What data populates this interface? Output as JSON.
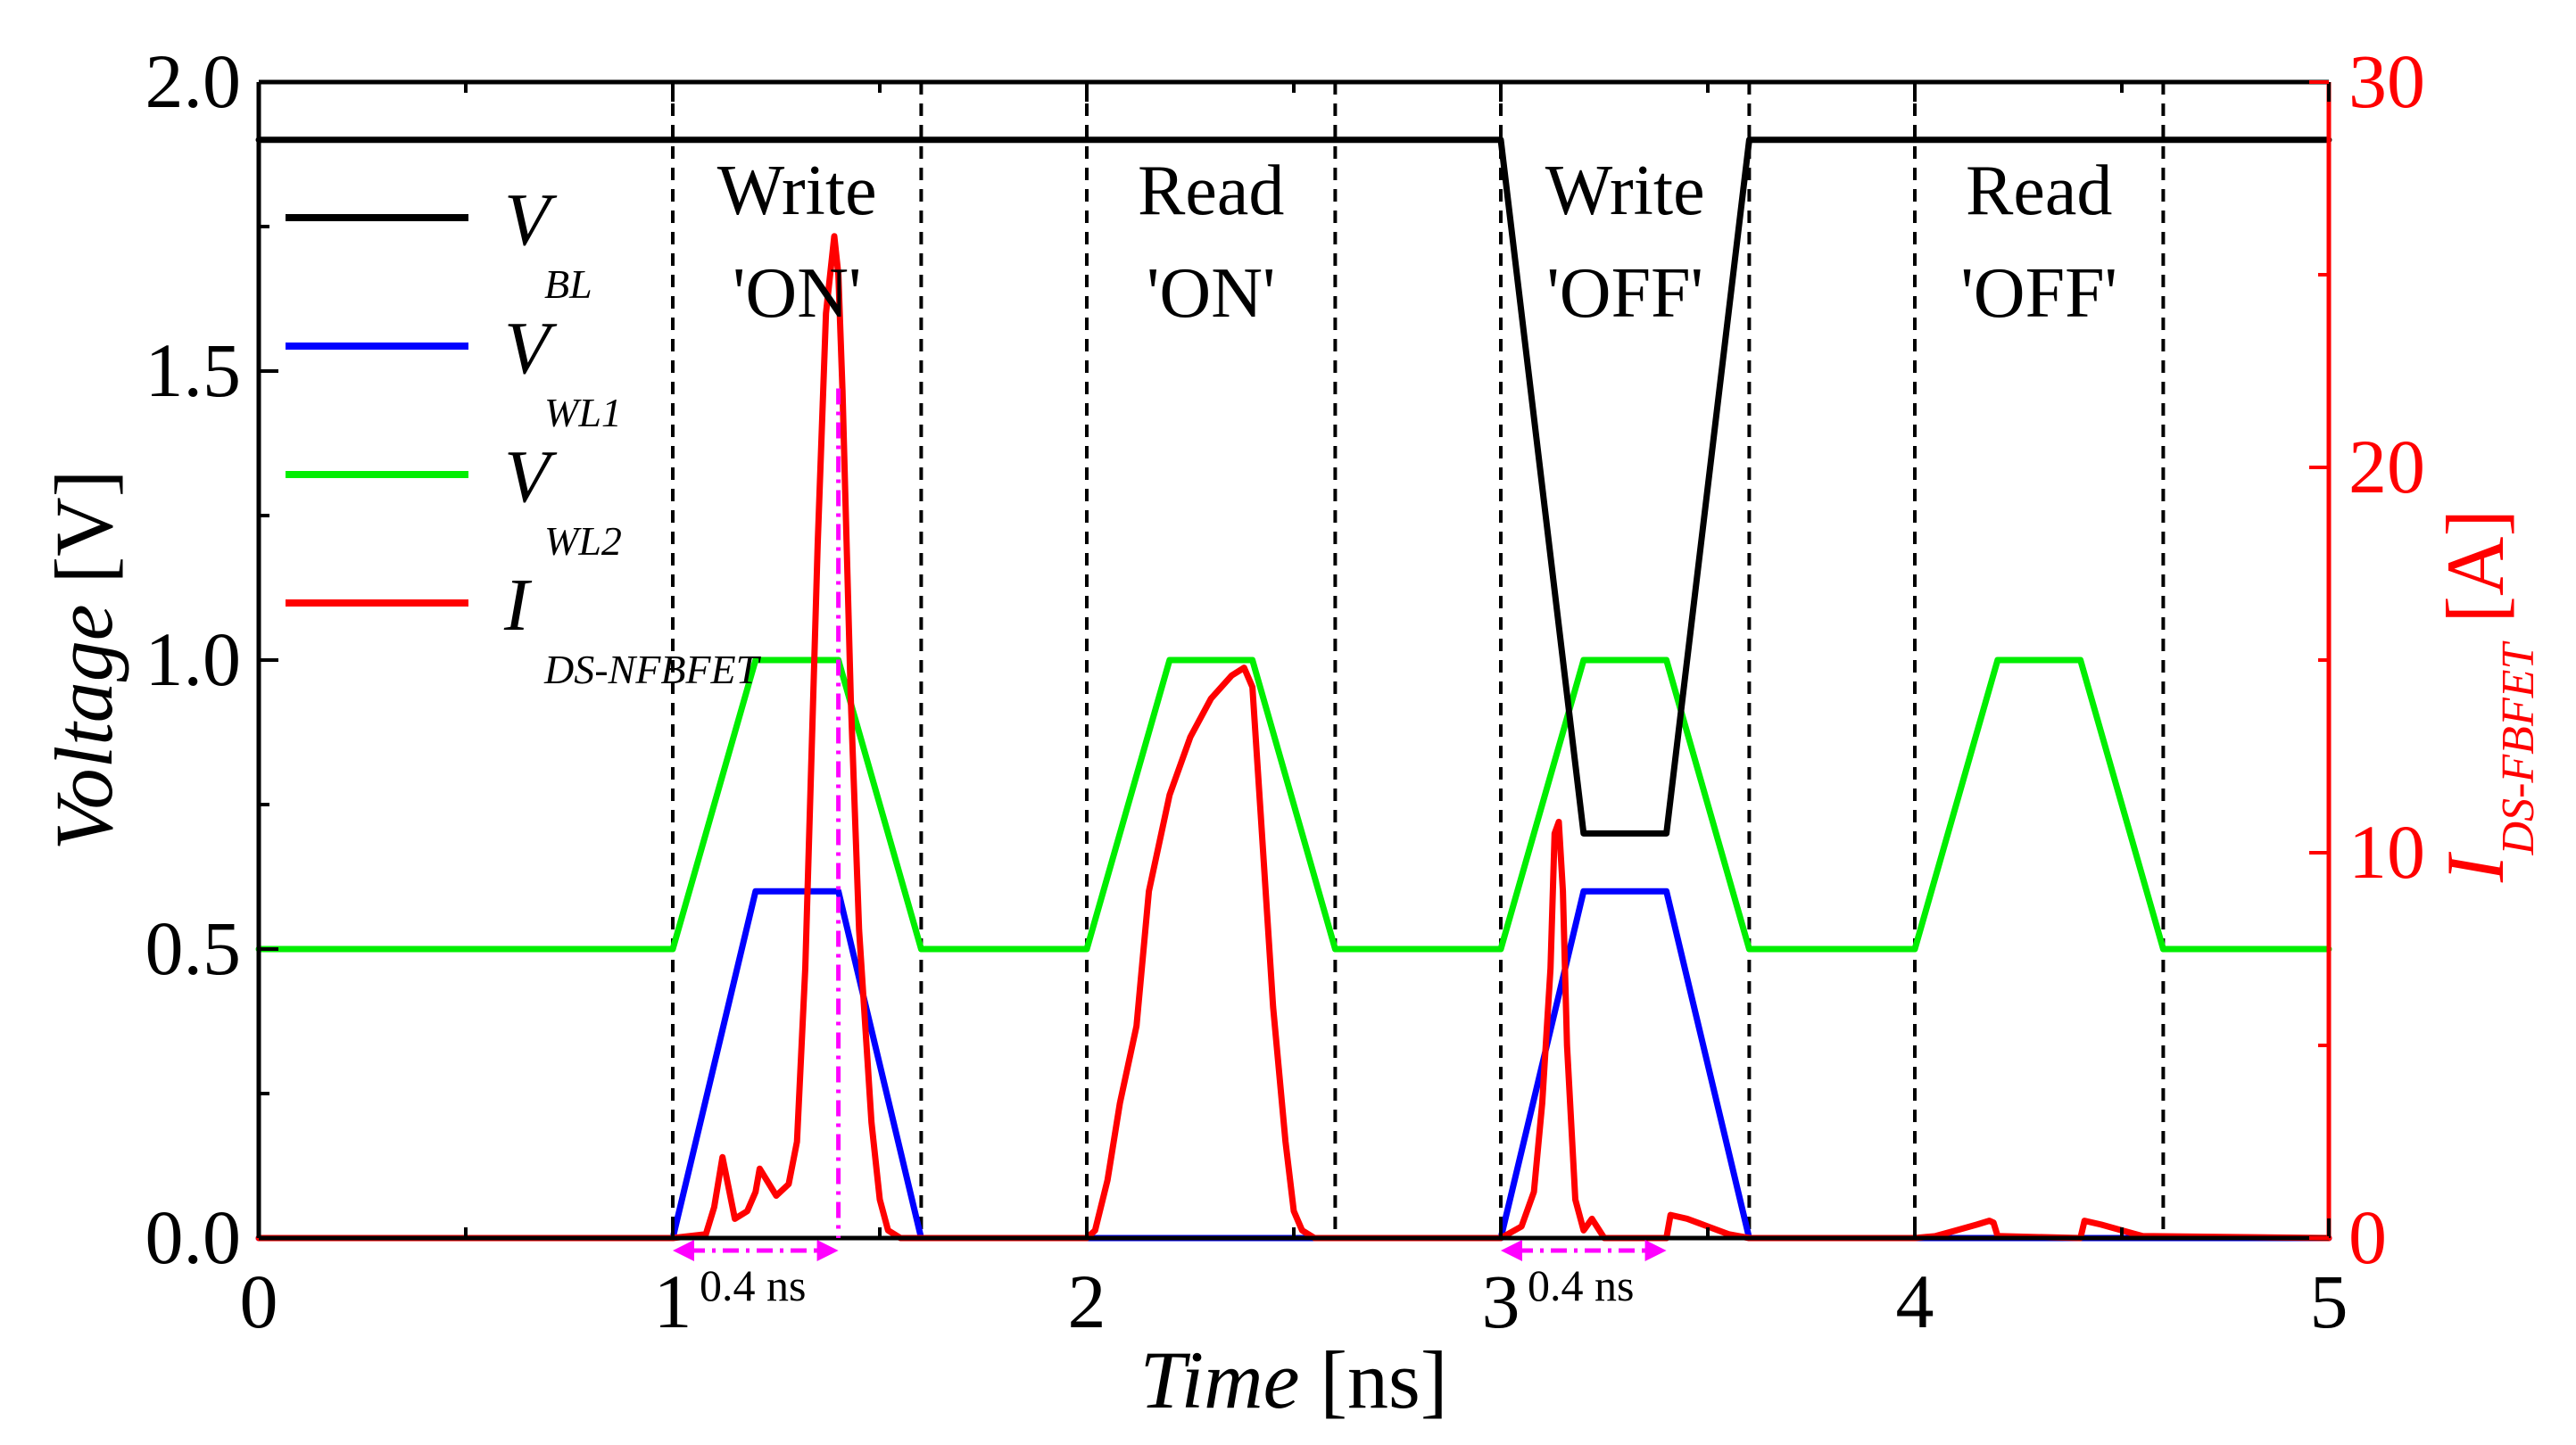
{
  "chart_data": {
    "type": "line",
    "xlabel": "Time",
    "xunit": "[ns]",
    "ylabel": "Voltage",
    "yunit": "[V]",
    "y2label_main": "I",
    "y2label_sub": "DS-FBFET",
    "y2unit": "[A]",
    "xlim": [
      0,
      5
    ],
    "ylim": [
      0,
      2
    ],
    "y2lim": [
      0,
      30
    ],
    "x_ticks": [
      0,
      1,
      2,
      3,
      4,
      5
    ],
    "x_tick_labels": [
      "0",
      "1",
      "2",
      "3",
      "4",
      "5"
    ],
    "y_ticks": [
      0.0,
      0.5,
      1.0,
      1.5,
      2.0
    ],
    "y_tick_labels": [
      "0.0",
      "0.5",
      "1.0",
      "1.5",
      "2.0"
    ],
    "y2_ticks": [
      0,
      10,
      20,
      30
    ],
    "y2_tick_labels": [
      "0",
      "10",
      "20",
      "30"
    ],
    "colors": {
      "vbl": "#000000",
      "vwl1": "#0000ff",
      "vwl2": "#00ee00",
      "ids": "#ff0000",
      "marker": "#ff00ff"
    },
    "phase_boundaries": [
      1.0,
      1.6,
      2.0,
      2.6,
      3.0,
      3.6,
      4.0,
      4.6
    ],
    "phases": [
      {
        "line1": "Write",
        "line2": "'ON'",
        "x": 1.3
      },
      {
        "line1": "Read",
        "line2": "'ON'",
        "x": 2.3
      },
      {
        "line1": "Write",
        "line2": "'OFF'",
        "x": 3.3
      },
      {
        "line1": "Read",
        "line2": "'OFF'",
        "x": 4.3
      }
    ],
    "legend": [
      {
        "key": "vbl",
        "main": "V",
        "sub": "BL"
      },
      {
        "key": "vwl1",
        "main": "V",
        "sub": "WL1"
      },
      {
        "key": "vwl2",
        "main": "V",
        "sub": "WL2"
      },
      {
        "key": "ids",
        "main": "I",
        "sub": "DS-NFBFET"
      }
    ],
    "annotations": [
      {
        "text": "0.4 ns",
        "x_from": 1.0,
        "x_to": 1.4
      },
      {
        "text": "0.4 ns",
        "x_from": 3.0,
        "x_to": 3.4
      }
    ],
    "series": [
      {
        "name": "V_BL",
        "key": "vbl",
        "axis": "left",
        "x": [
          0,
          3.0,
          3.2,
          3.4,
          3.6,
          5
        ],
        "y": [
          1.9,
          1.9,
          0.7,
          0.7,
          1.9,
          1.9
        ]
      },
      {
        "name": "V_WL1",
        "key": "vwl1",
        "axis": "left",
        "x": [
          0,
          1.0,
          1.2,
          1.4,
          1.6,
          3.0,
          3.2,
          3.4,
          3.6,
          5
        ],
        "y": [
          0,
          0,
          0.6,
          0.6,
          0,
          0,
          0.6,
          0.6,
          0,
          0
        ]
      },
      {
        "name": "V_WL2",
        "key": "vwl2",
        "axis": "left",
        "x": [
          0,
          1.0,
          1.2,
          1.4,
          1.6,
          2.0,
          2.2,
          2.4,
          2.6,
          3.0,
          3.2,
          3.4,
          3.6,
          4.0,
          4.2,
          4.4,
          4.6,
          5
        ],
        "y": [
          0.5,
          0.5,
          1.0,
          1.0,
          0.5,
          0.5,
          1.0,
          1.0,
          0.5,
          0.5,
          1.0,
          1.0,
          0.5,
          0.5,
          1.0,
          1.0,
          0.5,
          0.5
        ]
      },
      {
        "name": "I_DS-NFBFET",
        "key": "ids",
        "axis": "right",
        "x": [
          0,
          1.0,
          1.08,
          1.1,
          1.12,
          1.15,
          1.18,
          1.2,
          1.21,
          1.25,
          1.28,
          1.3,
          1.32,
          1.35,
          1.37,
          1.39,
          1.4,
          1.41,
          1.43,
          1.45,
          1.48,
          1.5,
          1.52,
          1.55,
          2.0,
          2.02,
          2.05,
          2.08,
          2.1,
          2.12,
          2.15,
          2.2,
          2.25,
          2.3,
          2.35,
          2.38,
          2.4,
          2.42,
          2.45,
          2.48,
          2.5,
          2.52,
          2.55,
          3.0,
          3.05,
          3.08,
          3.1,
          3.12,
          3.13,
          3.14,
          3.15,
          3.16,
          3.18,
          3.2,
          3.22,
          3.25,
          3.4,
          3.41,
          3.45,
          3.5,
          3.55,
          3.6,
          4.0,
          4.05,
          4.1,
          4.15,
          4.18,
          4.19,
          4.2,
          4.4,
          4.41,
          4.45,
          4.5,
          4.55,
          5
        ],
        "y": [
          0,
          0,
          0.1,
          0.8,
          2.1,
          0.5,
          0.7,
          1.2,
          1.8,
          1.1,
          1.4,
          2.5,
          7.0,
          18.0,
          24.0,
          26.0,
          25.0,
          22.0,
          14.0,
          8.0,
          3.0,
          1.0,
          0.2,
          0,
          0,
          0.2,
          1.5,
          3.5,
          4.5,
          5.5,
          9.0,
          11.5,
          13.0,
          14.0,
          14.6,
          14.8,
          14.3,
          11.0,
          6.0,
          2.5,
          0.7,
          0.2,
          0,
          0,
          0.3,
          1.2,
          3.5,
          7.0,
          10.5,
          10.8,
          9.0,
          5.0,
          1.0,
          0.2,
          0.5,
          0,
          0,
          0.6,
          0.5,
          0.3,
          0.1,
          0,
          0,
          0.05,
          0.2,
          0.35,
          0.45,
          0.4,
          0.05,
          0,
          0.45,
          0.35,
          0.2,
          0.05,
          0
        ]
      }
    ]
  }
}
